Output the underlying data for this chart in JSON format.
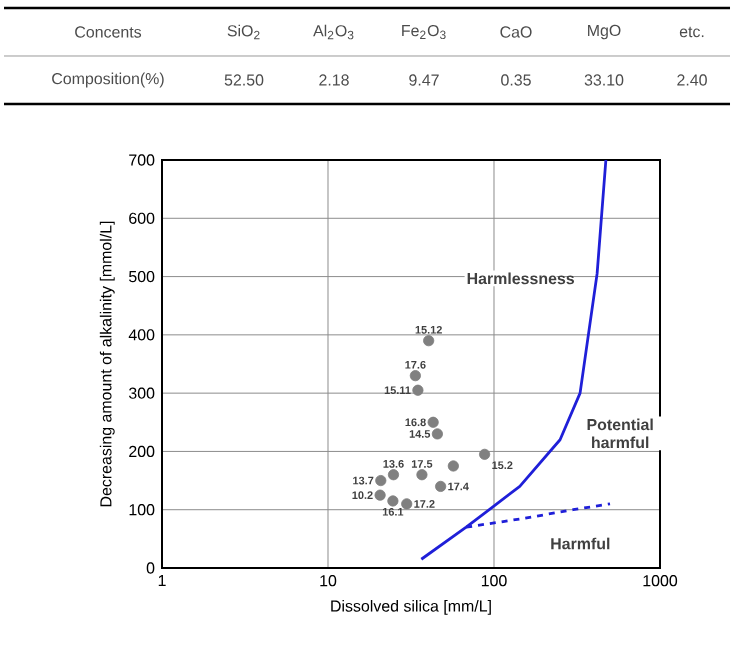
{
  "chart_data": [
    {
      "type": "other",
      "annotations": [
        "Concents",
        "SiO$_{2}$",
        "Al$_{2}$O$_{3}$",
        "Fe$_{2}$O$_{3}$",
        "CaO",
        "MgO",
        "etc.",
        "Composition(%)",
        "52.50",
        "2.18",
        "9.47",
        "0.35",
        "33.10",
        "2.40"
      ]
    },
    {
      "type": "scatter",
      "xlabel": "Dissolved silica [mm/L]",
      "ylabel": "Decreasing amount of alkalinity [mmol/L]",
      "log": "x",
      "grid": true,
      "xlim": [
        1,
        1000
      ],
      "xticks": [
        1,
        10,
        100,
        1000
      ],
      "ylim": [
        0,
        700
      ],
      "yticks": [
        0,
        100,
        200,
        300,
        400,
        500,
        600,
        700
      ],
      "series": [
        {
          "type": "scatter",
          "color": "#808080",
          "marker": "circle",
          "x": [
            40.4,
            33.6,
            34.8,
            43,
            45.6,
            24.8,
            36.8,
            20.8,
            87.8,
            56.9,
            47.7,
            20.6,
            24.6,
            29.8
          ],
          "values": [
            390,
            330,
            305,
            250,
            230,
            160,
            160,
            150,
            195,
            175,
            140,
            125,
            115,
            110
          ]
        },
        {
          "type": "line",
          "color": "#1f1fd8",
          "line_style": "solid",
          "marker": "none",
          "x": [
            36.5,
            68,
            143,
            250,
            330,
            418,
            472
          ],
          "values": [
            15,
            70,
            140,
            220,
            300,
            505,
            700
          ]
        },
        {
          "type": "line",
          "color": "#1f1fd8",
          "line_style": "dashed",
          "marker": "none",
          "x": [
            68,
            150,
            300,
            500
          ],
          "values": [
            70,
            85,
            100,
            110
          ]
        }
      ],
      "annotations": [
        {
          "text": "15.12",
          "x": 40.4,
          "y": 390
        },
        {
          "text": "17.6",
          "x": 33.6,
          "y": 330
        },
        {
          "text": "15.11",
          "x": 34.8,
          "y": 305
        },
        {
          "text": "16.8",
          "x": 43,
          "y": 250
        },
        {
          "text": "14.5",
          "x": 45.6,
          "y": 230
        },
        {
          "text": "13.6",
          "x": 24.8,
          "y": 160
        },
        {
          "text": "17.5",
          "x": 36.8,
          "y": 160
        },
        {
          "text": "13.7",
          "x": 20.8,
          "y": 150
        },
        {
          "text": "15.2",
          "x": 87.8,
          "y": 195
        },
        {
          "text": "17.4",
          "x": 47.7,
          "y": 140
        },
        {
          "text": "10.2",
          "x": 20.6,
          "y": 125
        },
        {
          "text": "16.1",
          "x": 24.6,
          "y": 115
        },
        {
          "text": "17.2",
          "x": 29.8,
          "y": 110
        },
        "Harmlessness",
        "Potential harmful",
        "Harmful"
      ]
    }
  ]
}
